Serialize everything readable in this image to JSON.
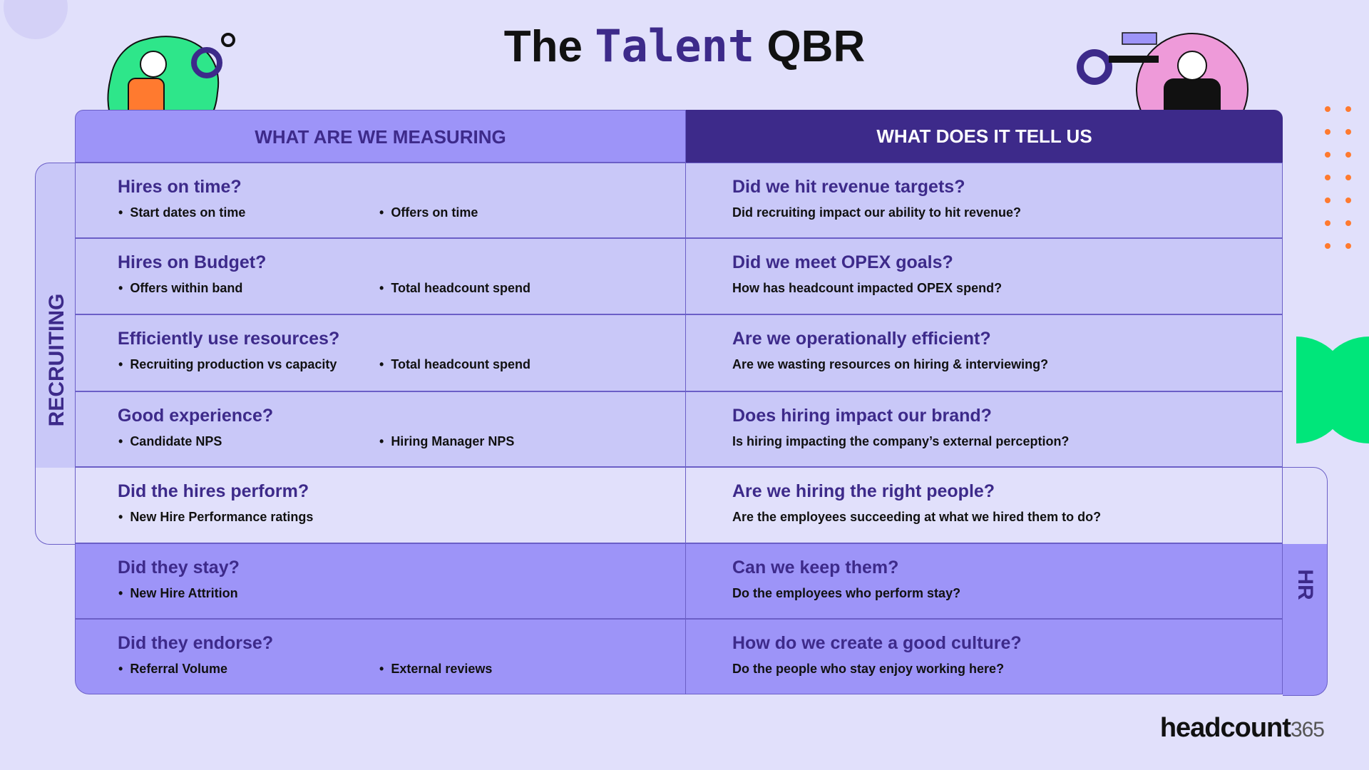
{
  "header": {
    "title": {
      "prefix": "The",
      "highlight": "Talent",
      "suffix": "QBR"
    }
  },
  "columns": [
    "WHAT ARE WE MEASURING",
    "WHAT DOES IT TELL US"
  ],
  "groups": [
    "RECRUITING",
    "HR"
  ],
  "rows": [
    {
      "question": "Hires on time?",
      "bullets": [
        "Start dates on time",
        "Offers on time"
      ],
      "insight": "Did we hit revenue targets?",
      "detail": "Did recruiting impact our ability to hit revenue?"
    },
    {
      "question": "Hires on Budget?",
      "bullets": [
        "Offers within band",
        "Total headcount spend"
      ],
      "insight": "Did we meet OPEX goals?",
      "detail": "How has headcount impacted OPEX spend?"
    },
    {
      "question": "Efficiently use resources?",
      "bullets": [
        "Recruiting production vs capacity",
        "Total headcount spend"
      ],
      "insight": "Are we operationally efficient?",
      "detail": "Are we wasting resources on hiring & interviewing?"
    },
    {
      "question": "Good experience?",
      "bullets": [
        "Candidate NPS",
        "Hiring Manager NPS"
      ],
      "insight": "Does hiring impact our brand?",
      "detail": "Is hiring impacting the company’s external perception?"
    },
    {
      "question": "Did the hires perform?",
      "bullets": [
        "New Hire Performance ratings"
      ],
      "insight": "Are we hiring the right people?",
      "detail": "Are the employees succeeding at what we hired them to do?"
    },
    {
      "question": "Did they stay?",
      "bullets": [
        "New Hire Attrition"
      ],
      "insight": "Can we keep them?",
      "detail": "Do the employees who perform stay?"
    },
    {
      "question": "Did they endorse?",
      "bullets": [
        "Referral Volume",
        "External reviews"
      ],
      "insight": "How do we create a good culture?",
      "detail": "Do the people who stay enjoy working here?"
    }
  ],
  "brand": {
    "name": "headcount",
    "suffix": "365"
  }
}
